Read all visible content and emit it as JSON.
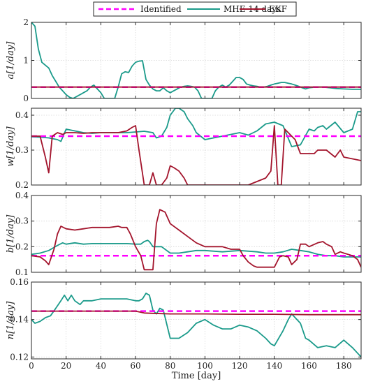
{
  "legend": {
    "placement": "top-center",
    "entries": [
      {
        "label": "Identified",
        "color": "#ff00ff",
        "style": "dashed"
      },
      {
        "label": "MHE 14 days",
        "color": "#1a9a8a",
        "style": "solid"
      },
      {
        "label": "EKF",
        "color": "#a3142c",
        "style": "solid"
      }
    ]
  },
  "x_axis": {
    "label": "Time [day]",
    "lim": [
      0,
      190
    ],
    "ticks": [
      0,
      20,
      40,
      60,
      80,
      100,
      120,
      140,
      160,
      180
    ]
  },
  "chart_data": [
    {
      "type": "line",
      "ylabel": "a[1/day]",
      "ylim": [
        0,
        2
      ],
      "yticks": [
        0,
        1,
        2
      ],
      "ytick_labels": [
        "0",
        "1",
        "2"
      ],
      "grid": true,
      "series": [
        {
          "name": "Identified",
          "x": [
            0,
            190
          ],
          "y": [
            0.3,
            0.3
          ]
        },
        {
          "name": "MHE 14 days",
          "x": [
            0,
            2,
            4,
            6,
            10,
            12,
            14,
            16,
            18,
            20,
            22,
            24,
            26,
            28,
            30,
            32,
            34,
            36,
            38,
            40,
            42,
            44,
            46,
            48,
            50,
            52,
            54,
            56,
            58,
            60,
            62,
            64,
            66,
            68,
            70,
            72,
            74,
            76,
            78,
            80,
            82,
            84,
            86,
            88,
            90,
            92,
            94,
            96,
            98,
            100,
            102,
            104,
            106,
            108,
            110,
            112,
            114,
            116,
            118,
            120,
            122,
            124,
            126,
            128,
            130,
            132,
            134,
            136,
            138,
            140,
            142,
            144,
            146,
            148,
            150,
            152,
            154,
            156,
            158,
            160,
            164,
            168,
            172,
            176,
            180,
            185,
            190
          ],
          "y": [
            2.0,
            1.9,
            1.3,
            0.95,
            0.8,
            0.6,
            0.45,
            0.3,
            0.2,
            0.1,
            0.03,
            0.0,
            0.05,
            0.1,
            0.15,
            0.2,
            0.3,
            0.35,
            0.25,
            0.15,
            0.0,
            0.0,
            0.0,
            0.0,
            0.3,
            0.65,
            0.7,
            0.68,
            0.85,
            0.95,
            0.98,
            0.99,
            0.5,
            0.35,
            0.25,
            0.2,
            0.2,
            0.28,
            0.2,
            0.15,
            0.2,
            0.25,
            0.3,
            0.32,
            0.33,
            0.32,
            0.3,
            0.2,
            0.0,
            0.0,
            0.0,
            0.0,
            0.2,
            0.3,
            0.35,
            0.3,
            0.35,
            0.45,
            0.55,
            0.55,
            0.5,
            0.38,
            0.35,
            0.33,
            0.32,
            0.3,
            0.3,
            0.32,
            0.35,
            0.38,
            0.4,
            0.42,
            0.42,
            0.4,
            0.38,
            0.35,
            0.32,
            0.28,
            0.25,
            0.28,
            0.3,
            0.3,
            0.28,
            0.26,
            0.25,
            0.24,
            0.24
          ]
        },
        {
          "name": "EKF",
          "x": [
            0,
            190
          ],
          "y": [
            0.3,
            0.3
          ]
        }
      ]
    },
    {
      "type": "line",
      "ylabel": "w[1/day]",
      "ylim": [
        0.2,
        0.42
      ],
      "yticks": [
        0.2,
        0.3,
        0.4
      ],
      "ytick_labels": [
        "0.2",
        "0.3",
        "0.4"
      ],
      "grid": true,
      "series": [
        {
          "name": "Identified",
          "x": [
            0,
            190
          ],
          "y": [
            0.34,
            0.34
          ]
        },
        {
          "name": "MHE 14 days",
          "x": [
            0,
            5,
            10,
            15,
            17,
            20,
            25,
            30,
            35,
            40,
            45,
            50,
            55,
            60,
            65,
            70,
            72,
            75,
            78,
            80,
            83,
            85,
            88,
            90,
            93,
            95,
            100,
            105,
            110,
            115,
            120,
            125,
            130,
            135,
            140,
            145,
            150,
            155,
            160,
            163,
            165,
            168,
            170,
            175,
            180,
            185,
            188,
            190
          ],
          "y": [
            0.338,
            0.337,
            0.335,
            0.33,
            0.325,
            0.36,
            0.355,
            0.35,
            0.348,
            0.35,
            0.35,
            0.35,
            0.35,
            0.352,
            0.354,
            0.35,
            0.335,
            0.34,
            0.365,
            0.4,
            0.42,
            0.42,
            0.41,
            0.39,
            0.37,
            0.35,
            0.33,
            0.335,
            0.34,
            0.345,
            0.35,
            0.343,
            0.355,
            0.375,
            0.38,
            0.37,
            0.31,
            0.315,
            0.36,
            0.355,
            0.365,
            0.37,
            0.36,
            0.38,
            0.35,
            0.36,
            0.41,
            0.41
          ]
        },
        {
          "name": "EKF",
          "x": [
            0,
            5,
            8,
            10,
            12,
            15,
            18,
            20,
            25,
            30,
            35,
            40,
            45,
            50,
            55,
            58,
            60,
            62,
            65,
            68,
            70,
            72,
            75,
            78,
            80,
            82,
            85,
            88,
            90,
            95,
            100,
            105,
            110,
            115,
            120,
            125,
            130,
            135,
            138,
            140,
            142,
            144,
            146,
            148,
            150,
            152,
            155,
            160,
            163,
            165,
            170,
            175,
            178,
            180,
            185,
            190
          ],
          "y": [
            0.34,
            0.34,
            0.28,
            0.235,
            0.34,
            0.35,
            0.345,
            0.35,
            0.35,
            0.348,
            0.35,
            0.35,
            0.35,
            0.35,
            0.355,
            0.365,
            0.37,
            0.3,
            0.2,
            0.2,
            0.235,
            0.2,
            0.2,
            0.22,
            0.255,
            0.25,
            0.24,
            0.22,
            0.2,
            0.2,
            0.2,
            0.2,
            0.2,
            0.2,
            0.2,
            0.2,
            0.21,
            0.22,
            0.24,
            0.37,
            0.2,
            0.2,
            0.36,
            0.35,
            0.34,
            0.33,
            0.29,
            0.29,
            0.29,
            0.3,
            0.3,
            0.28,
            0.3,
            0.28,
            0.275,
            0.27
          ]
        }
      ]
    },
    {
      "type": "line",
      "ylabel": "b[1/day]",
      "ylim": [
        0.1,
        0.4
      ],
      "yticks": [
        0.1,
        0.2,
        0.3,
        0.4
      ],
      "ytick_labels": [
        "0.1",
        "0.2",
        "0.3",
        "0.4"
      ],
      "grid": true,
      "series": [
        {
          "name": "Identified",
          "x": [
            0,
            190
          ],
          "y": [
            0.165,
            0.165
          ]
        },
        {
          "name": "MHE 14 days",
          "x": [
            0,
            5,
            10,
            15,
            18,
            20,
            25,
            30,
            35,
            40,
            45,
            50,
            55,
            60,
            63,
            65,
            67,
            68,
            70,
            73,
            75,
            80,
            85,
            90,
            95,
            100,
            110,
            120,
            130,
            135,
            140,
            145,
            150,
            155,
            160,
            165,
            170,
            175,
            180,
            185,
            188,
            190
          ],
          "y": [
            0.17,
            0.175,
            0.185,
            0.205,
            0.215,
            0.21,
            0.215,
            0.21,
            0.212,
            0.212,
            0.212,
            0.212,
            0.212,
            0.21,
            0.21,
            0.22,
            0.225,
            0.22,
            0.2,
            0.2,
            0.2,
            0.175,
            0.175,
            0.18,
            0.185,
            0.185,
            0.18,
            0.185,
            0.18,
            0.175,
            0.175,
            0.18,
            0.19,
            0.185,
            0.18,
            0.17,
            0.165,
            0.165,
            0.16,
            0.16,
            0.16,
            0.16
          ]
        },
        {
          "name": "EKF",
          "x": [
            0,
            5,
            8,
            10,
            13,
            15,
            17,
            20,
            25,
            30,
            35,
            40,
            45,
            50,
            52,
            55,
            57,
            60,
            63,
            65,
            68,
            70,
            72,
            74,
            77,
            80,
            85,
            90,
            95,
            100,
            105,
            110,
            115,
            120,
            122,
            125,
            128,
            130,
            135,
            140,
            143,
            145,
            148,
            150,
            153,
            155,
            158,
            160,
            165,
            168,
            170,
            173,
            175,
            178,
            180,
            185,
            188,
            190
          ],
          "y": [
            0.165,
            0.16,
            0.145,
            0.13,
            0.19,
            0.25,
            0.28,
            0.27,
            0.265,
            0.27,
            0.275,
            0.275,
            0.275,
            0.28,
            0.275,
            0.275,
            0.25,
            0.2,
            0.165,
            0.11,
            0.11,
            0.11,
            0.29,
            0.345,
            0.335,
            0.29,
            0.265,
            0.24,
            0.215,
            0.2,
            0.2,
            0.2,
            0.19,
            0.19,
            0.165,
            0.14,
            0.125,
            0.12,
            0.12,
            0.12,
            0.16,
            0.165,
            0.16,
            0.13,
            0.15,
            0.21,
            0.21,
            0.2,
            0.215,
            0.22,
            0.21,
            0.2,
            0.17,
            0.18,
            0.175,
            0.165,
            0.15,
            0.12
          ]
        }
      ]
    },
    {
      "type": "line",
      "ylabel": "n[1/day]",
      "ylim": [
        0.119,
        0.16
      ],
      "yticks": [
        0.12,
        0.14,
        0.16
      ],
      "ytick_labels": [
        "0.12",
        "0.14",
        "0.16"
      ],
      "grid": true,
      "series": [
        {
          "name": "Identified",
          "x": [
            0,
            190
          ],
          "y": [
            0.1445,
            0.1445
          ]
        },
        {
          "name": "MHE 14 days",
          "x": [
            0,
            2,
            5,
            8,
            11,
            14,
            17,
            19,
            21,
            23,
            25,
            28,
            30,
            35,
            40,
            45,
            50,
            55,
            60,
            62,
            64,
            66,
            68,
            70,
            72,
            74,
            76,
            80,
            85,
            90,
            95,
            100,
            105,
            110,
            115,
            120,
            125,
            130,
            135,
            138,
            140,
            145,
            148,
            150,
            155,
            158,
            160,
            165,
            170,
            175,
            180,
            185,
            190
          ],
          "y": [
            0.14,
            0.138,
            0.139,
            0.141,
            0.142,
            0.146,
            0.15,
            0.153,
            0.15,
            0.153,
            0.15,
            0.148,
            0.15,
            0.15,
            0.151,
            0.151,
            0.151,
            0.151,
            0.15,
            0.15,
            0.151,
            0.154,
            0.153,
            0.145,
            0.143,
            0.146,
            0.145,
            0.13,
            0.13,
            0.133,
            0.138,
            0.14,
            0.137,
            0.135,
            0.135,
            0.137,
            0.136,
            0.134,
            0.13,
            0.127,
            0.126,
            0.134,
            0.14,
            0.143,
            0.138,
            0.13,
            0.129,
            0.125,
            0.126,
            0.125,
            0.129,
            0.125,
            0.12
          ]
        },
        {
          "name": "EKF",
          "x": [
            0,
            20,
            40,
            60,
            65,
            70,
            80,
            100,
            120,
            140,
            160,
            180,
            190
          ],
          "y": [
            0.1445,
            0.1445,
            0.1445,
            0.1445,
            0.1435,
            0.1433,
            0.143,
            0.143,
            0.1428,
            0.1428,
            0.1426,
            0.1426,
            0.1426
          ]
        }
      ]
    }
  ]
}
